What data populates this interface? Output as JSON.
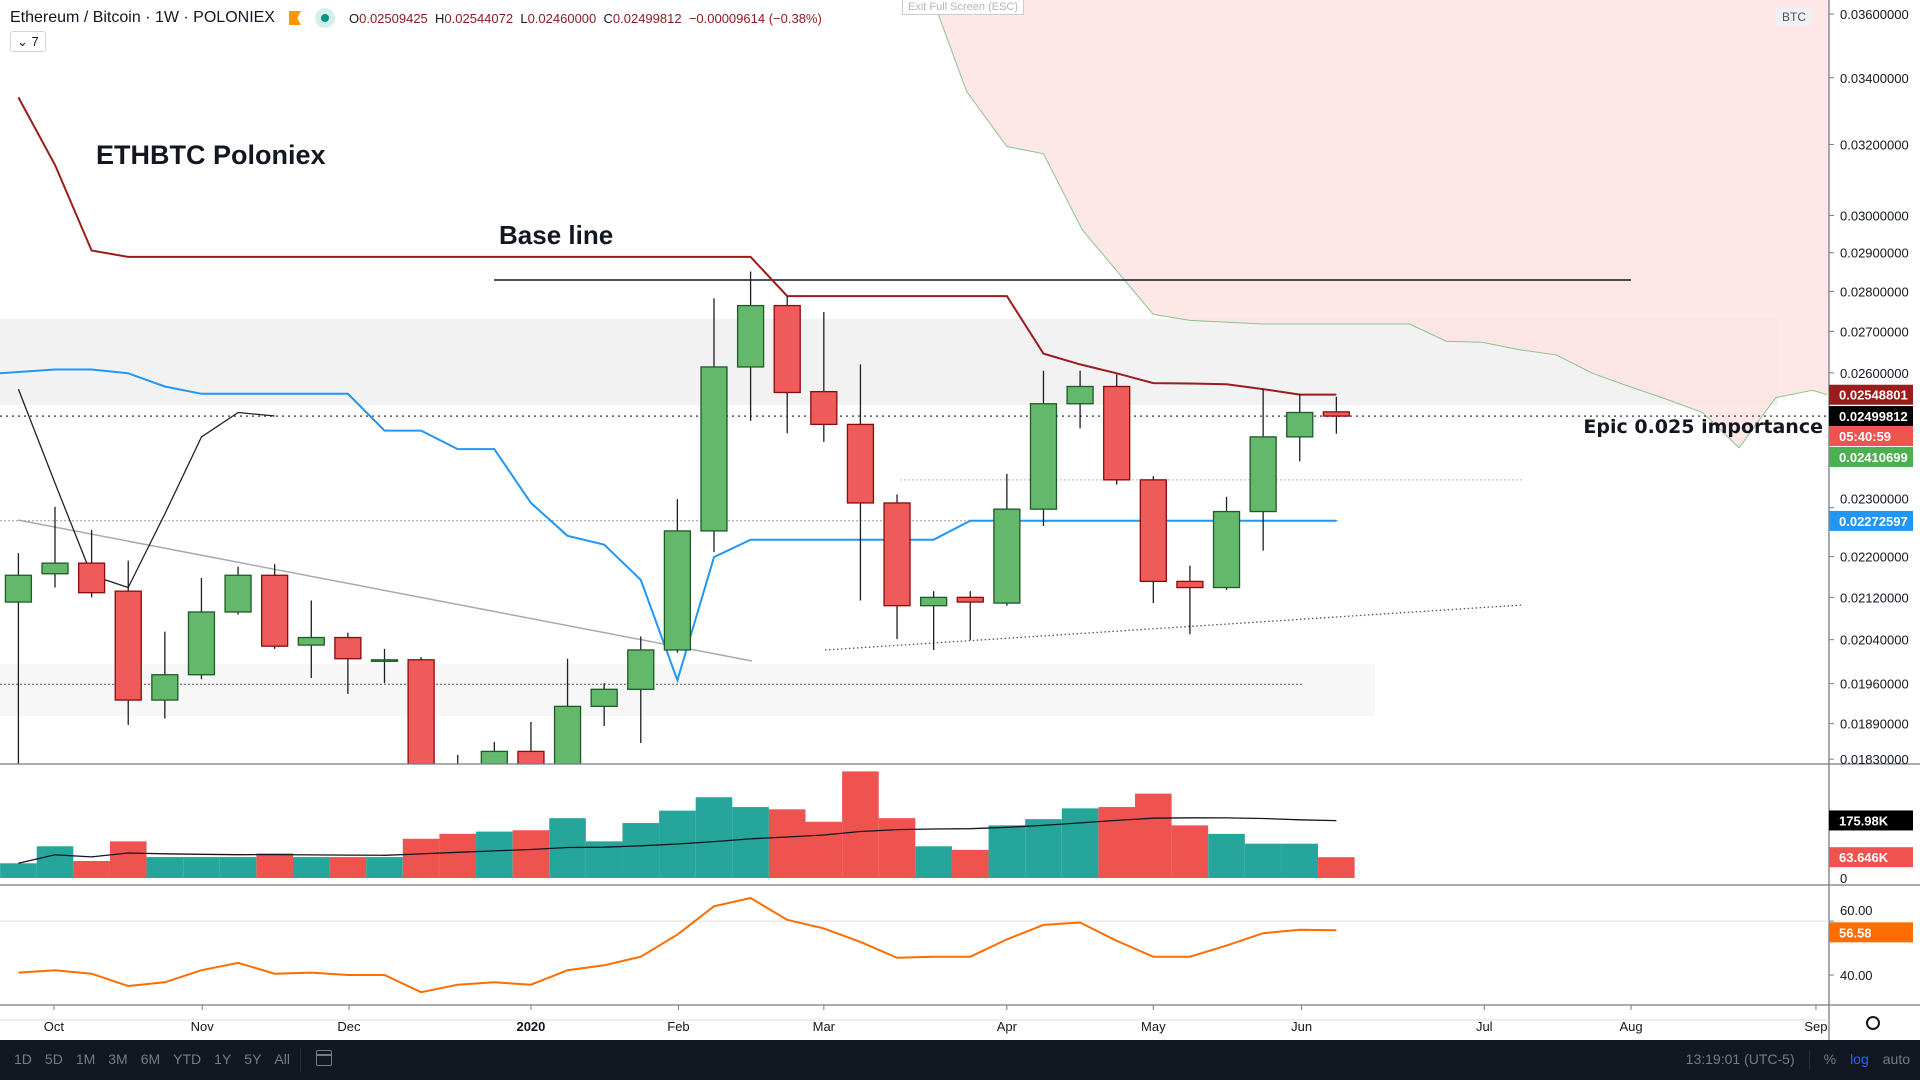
{
  "header": {
    "symbol": "Ethereum / Bitcoin",
    "interval": "1W",
    "exchange": "POLONIEX",
    "open": "0.02509425",
    "high": "0.02544072",
    "low": "0.02460000",
    "close": "0.02499812",
    "change": "−0.00009614 (−0.38%)",
    "o_label": "O",
    "h_label": "H",
    "l_label": "L",
    "c_label": "C",
    "collapse_count": "7"
  },
  "exit_fullscreen": "Exit Full Screen (ESC)",
  "currency_badge": "BTC",
  "annotations": {
    "title": "ETHBTC Poloniex",
    "base_line": "Base line",
    "epic": "Epic 0.025 importance"
  },
  "colors": {
    "up": "#63b86b",
    "up_border": "#1e5b25",
    "down": "#ef5b5b",
    "down_border": "#8b0a0a",
    "vol_up": "#26a69a",
    "vol_down": "#ef5350",
    "kijun": "#9b1c1c",
    "tenkan": "#2196f3",
    "rsi": "#ff6d00",
    "cloud": "#fde3e3",
    "cloud_line": "#8bc48a"
  },
  "chart_data": {
    "type": "candlestick",
    "scale": "log",
    "price_ticks": [
      "0.03400000",
      "0.03200000",
      "0.03000000",
      "0.02900000",
      "0.02800000",
      "0.02700000",
      "0.02600000",
      "0.02300000",
      "0.02200000",
      "0.02120000",
      "0.02040000",
      "0.01960000",
      "0.01890000",
      "0.01830000"
    ],
    "price_top_tick": "0.03600000",
    "ohlc": [
      [
        0.02111,
        0.02207,
        0.018,
        0.02163
      ],
      [
        0.02166,
        0.02302,
        0.02139,
        0.02187
      ],
      [
        0.02187,
        0.02254,
        0.0212,
        0.02129
      ],
      [
        0.02132,
        0.02192,
        0.01888,
        0.01931
      ],
      [
        0.01931,
        0.02055,
        0.01899,
        0.01976
      ],
      [
        0.01976,
        0.02158,
        0.01968,
        0.02092
      ],
      [
        0.02092,
        0.0218,
        0.02087,
        0.02163
      ],
      [
        0.02163,
        0.02185,
        0.02023,
        0.02028
      ],
      [
        0.0203,
        0.02114,
        0.0197,
        0.02044
      ],
      [
        0.02044,
        0.02053,
        0.01942,
        0.02005
      ],
      [
        0.02003,
        0.02023,
        0.01961,
        0.02003
      ],
      [
        0.02003,
        0.02008,
        0.0176,
        0.0179
      ],
      [
        0.0179,
        0.01837,
        0.0172,
        0.01775
      ],
      [
        0.0181,
        0.01859,
        0.0178,
        0.01843
      ],
      [
        0.01843,
        0.01893,
        0.0178,
        0.0181
      ],
      [
        0.0181,
        0.02005,
        0.0179,
        0.0192
      ],
      [
        0.0192,
        0.01961,
        0.01886,
        0.0195
      ],
      [
        0.0195,
        0.02046,
        0.01857,
        0.02021
      ],
      [
        0.02021,
        0.02318,
        0.02016,
        0.02252
      ],
      [
        0.02252,
        0.02782,
        0.02209,
        0.02614
      ],
      [
        0.02614,
        0.02851,
        0.02489,
        0.02764
      ],
      [
        0.02764,
        0.02788,
        0.02461,
        0.02554
      ],
      [
        0.02556,
        0.02748,
        0.02442,
        0.02481
      ],
      [
        0.02481,
        0.0262,
        0.02114,
        0.0231
      ],
      [
        0.0231,
        0.02328,
        0.02041,
        0.02104
      ],
      [
        0.02104,
        0.02132,
        0.02021,
        0.0212
      ],
      [
        0.0212,
        0.02132,
        0.02039,
        0.02111
      ],
      [
        0.02109,
        0.02372,
        0.02104,
        0.02297
      ],
      [
        0.02297,
        0.02605,
        0.02262,
        0.02528
      ],
      [
        0.02528,
        0.02605,
        0.02472,
        0.02568
      ],
      [
        0.02568,
        0.02596,
        0.02349,
        0.02359
      ],
      [
        0.02359,
        0.02367,
        0.02109,
        0.02151
      ],
      [
        0.02151,
        0.02182,
        0.0205,
        0.02139
      ],
      [
        0.02139,
        0.02323,
        0.02134,
        0.02292
      ],
      [
        0.02292,
        0.02562,
        0.02212,
        0.02453
      ],
      [
        0.02453,
        0.02551,
        0.02399,
        0.02508
      ],
      [
        0.02509425,
        0.02544072,
        0.0246,
        0.02499812
      ]
    ],
    "volume_k": [
      45,
      97,
      52,
      112,
      64,
      64,
      64,
      75,
      64,
      64,
      64,
      120,
      135,
      142,
      146,
      183,
      112,
      168,
      206,
      247,
      217,
      210,
      172,
      326,
      183,
      97,
      86,
      161,
      180,
      213,
      217,
      258,
      161,
      135,
      105,
      105,
      63.646
    ],
    "kijun": [
      0.0334,
      0.03141,
      0.02906,
      0.02889,
      0.02889,
      0.02889,
      0.02889,
      0.02889,
      0.02889,
      0.02889,
      0.02889,
      0.02889,
      0.02889,
      0.02889,
      0.02889,
      0.02889,
      0.02889,
      0.02889,
      0.02889,
      0.02889,
      0.02889,
      0.02788,
      0.02788,
      0.02788,
      0.02788,
      0.02788,
      0.02788,
      0.02788,
      0.02646,
      0.0262,
      0.02599,
      0.02576,
      0.02575,
      0.02573,
      0.02562,
      0.02549,
      0.02549
    ],
    "tenkan": [
      0.02599,
      0.02608,
      0.02608,
      0.02599,
      0.02568,
      0.02551,
      0.02551,
      0.02551,
      0.02551,
      0.02551,
      0.02467,
      0.02467,
      0.02426,
      0.02426,
      0.0231,
      0.02242,
      0.02224,
      0.02154,
      0.01966,
      0.02199,
      0.02234,
      0.02234,
      0.02234,
      0.02234,
      0.02234,
      0.02234,
      0.02273,
      0.02273,
      0.02273,
      0.02273,
      0.02273,
      0.02273,
      0.02273,
      0.02273,
      0.02273,
      0.02273,
      0.02273
    ],
    "lagging": [
      0.02562,
      0.02352,
      0.02163,
      0.02139,
      0.02287,
      0.02453,
      0.02508,
      0.025
    ],
    "cloud_edge": [
      [
        24.98,
        0.0365
      ],
      [
        25.9,
        0.03358
      ],
      [
        27,
        0.03194
      ],
      [
        28,
        0.03173
      ],
      [
        29.06,
        0.02961
      ],
      [
        31,
        0.02742
      ],
      [
        32,
        0.02727
      ],
      [
        34,
        0.02718
      ],
      [
        38,
        0.02718
      ],
      [
        39,
        0.02676
      ],
      [
        40,
        0.02673
      ],
      [
        41,
        0.02655
      ],
      [
        42,
        0.02643
      ],
      [
        43,
        0.02599
      ],
      [
        44,
        0.02568
      ],
      [
        45,
        0.02539
      ],
      [
        46,
        0.02508
      ],
      [
        47,
        0.02429
      ],
      [
        48,
        0.02542
      ],
      [
        49,
        0.02559
      ],
      [
        49.4,
        0.02549
      ]
    ],
    "levels": {
      "base_line": 0.02829,
      "current": 0.02499812,
      "mid_dotted": 0.02359,
      "blue_dotted": 0.02273,
      "low_dotted": 0.01959
    },
    "zones": [
      [
        0.02525,
        0.02731
      ],
      [
        0.01903,
        0.01995
      ]
    ],
    "rsi": [
      40.9,
      41.8,
      40.5,
      35.9,
      37.3,
      41.8,
      44.5,
      40.5,
      40.9,
      40,
      40,
      33.6,
      36.4,
      37.3,
      36.4,
      41.8,
      43.6,
      46.8,
      55,
      65.5,
      68.6,
      60.5,
      57.3,
      52.3,
      46.4,
      46.8,
      46.8,
      53.2,
      58.6,
      59.5,
      52.7,
      46.8,
      46.8,
      50.9,
      55.5,
      56.8,
      56.58
    ],
    "rsi_ticks": [
      "60.00",
      "40.00"
    ],
    "volume_zero": "0",
    "months": [
      {
        "label": "Oct",
        "week": 0.97
      },
      {
        "label": "Nov",
        "week": 5.02
      },
      {
        "label": "Dec",
        "week": 9.03
      },
      {
        "label": "2020",
        "week": 14.0,
        "bold": true
      },
      {
        "label": "Feb",
        "week": 18.03
      },
      {
        "label": "Mar",
        "week": 22.0
      },
      {
        "label": "Apr",
        "week": 27.0
      },
      {
        "label": "May",
        "week": 31.0
      },
      {
        "label": "Jun",
        "week": 35.05
      },
      {
        "label": "Jul",
        "week": 40.04
      },
      {
        "label": "Aug",
        "week": 44.05
      },
      {
        "label": "Sep",
        "week": 49.1
      }
    ]
  },
  "axis_labels": {
    "kijun": "0.02548801",
    "last": "0.02499812",
    "countdown": "05:40:59",
    "green": "0.02410699",
    "tenkan": "0.02272597",
    "vol_ma": "175.98K",
    "vol_last": "63.646K",
    "rsi": "56.58"
  },
  "toolbar": {
    "ranges": [
      "1D",
      "5D",
      "1M",
      "3M",
      "6M",
      "YTD",
      "1Y",
      "5Y",
      "All"
    ],
    "time": "13:19:01 (UTC-5)",
    "percent": "%",
    "log": "log",
    "auto": "auto"
  }
}
